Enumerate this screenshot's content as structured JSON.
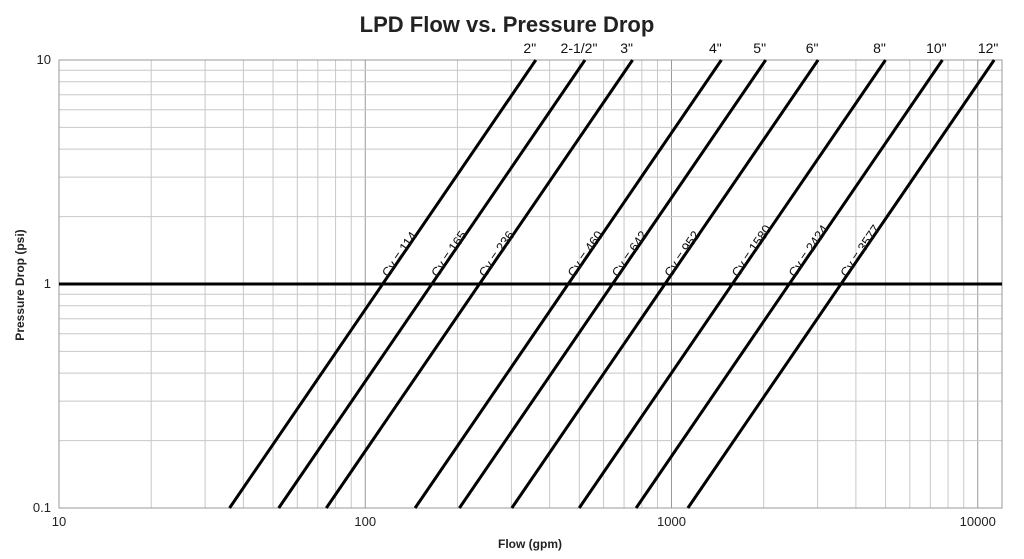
{
  "chart_data": {
    "type": "line",
    "title": "LPD Flow vs. Pressure Drop",
    "xlabel": "Flow (gpm)",
    "ylabel": "Pressure Drop (psi)",
    "x_scale": "log",
    "y_scale": "log",
    "xlim": [
      10,
      12000
    ],
    "ylim": [
      0.1,
      10
    ],
    "x_tick_labels": [
      "10",
      "100",
      "1000",
      "10000"
    ],
    "y_tick_labels": [
      "0.1",
      "1",
      "10"
    ],
    "grid": true,
    "reference_line_y": 1,
    "series": [
      {
        "name": "2\"",
        "cv_label": "Cv = 114",
        "cv": 114
      },
      {
        "name": "2-1/2\"",
        "cv_label": "Cv = 165",
        "cv": 165
      },
      {
        "name": "3\"",
        "cv_label": "Cv = 236",
        "cv": 236
      },
      {
        "name": "4\"",
        "cv_label": "Cv = 460",
        "cv": 460
      },
      {
        "name": "5\"",
        "cv_label": "Cv = 642",
        "cv": 642
      },
      {
        "name": "6\"",
        "cv_label": "Cv = 952",
        "cv": 952
      },
      {
        "name": "8\"",
        "cv_label": "Cv = 1580",
        "cv": 1580
      },
      {
        "name": "10\"",
        "cv_label": "Cv = 2424",
        "cv": 2424
      },
      {
        "name": "12\"",
        "cv_label": "Cv = 3577",
        "cv": 3577
      }
    ]
  }
}
